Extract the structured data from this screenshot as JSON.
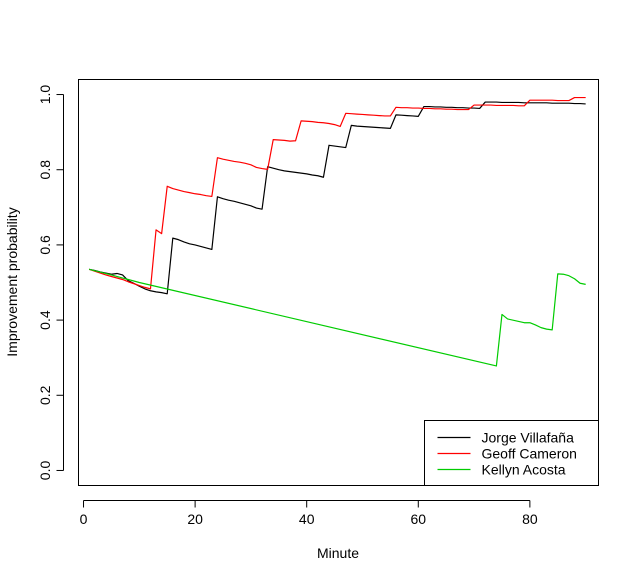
{
  "chart_data": {
    "type": "line",
    "title": "",
    "xlabel": "Minute",
    "ylabel": "Improvement probability",
    "xlim": [
      -0.9,
      92.3
    ],
    "ylim": [
      -0.04,
      1.04
    ],
    "x_ticks": [
      0,
      20,
      40,
      60,
      80
    ],
    "y_ticks": [
      0.0,
      0.2,
      0.4,
      0.6,
      0.8,
      1.0
    ],
    "x_tick_labels": [
      "0",
      "20",
      "40",
      "60",
      "80"
    ],
    "y_tick_labels": [
      "0.0",
      "0.2",
      "0.4",
      "0.6",
      "0.8",
      "1.0"
    ],
    "legend_position": "bottom-right",
    "series": [
      {
        "name": "Jorge Villafaña",
        "color": "#000000",
        "points": [
          [
            1,
            0.535
          ],
          [
            2,
            0.532
          ],
          [
            3,
            0.528
          ],
          [
            4,
            0.525
          ],
          [
            5,
            0.522
          ],
          [
            6,
            0.524
          ],
          [
            7,
            0.52
          ],
          [
            8,
            0.505
          ],
          [
            9,
            0.498
          ],
          [
            10,
            0.49
          ],
          [
            11,
            0.483
          ],
          [
            12,
            0.478
          ],
          [
            13,
            0.475
          ],
          [
            14,
            0.473
          ],
          [
            15,
            0.47
          ],
          [
            16,
            0.618
          ],
          [
            17,
            0.614
          ],
          [
            18,
            0.608
          ],
          [
            19,
            0.603
          ],
          [
            20,
            0.6
          ],
          [
            21,
            0.596
          ],
          [
            22,
            0.592
          ],
          [
            23,
            0.588
          ],
          [
            24,
            0.728
          ],
          [
            25,
            0.723
          ],
          [
            26,
            0.719
          ],
          [
            27,
            0.716
          ],
          [
            28,
            0.712
          ],
          [
            29,
            0.708
          ],
          [
            30,
            0.704
          ],
          [
            31,
            0.698
          ],
          [
            32,
            0.695
          ],
          [
            33,
            0.808
          ],
          [
            34,
            0.804
          ],
          [
            35,
            0.8
          ],
          [
            36,
            0.797
          ],
          [
            37,
            0.795
          ],
          [
            38,
            0.793
          ],
          [
            39,
            0.791
          ],
          [
            40,
            0.789
          ],
          [
            41,
            0.786
          ],
          [
            42,
            0.784
          ],
          [
            43,
            0.78
          ],
          [
            44,
            0.865
          ],
          [
            45,
            0.863
          ],
          [
            46,
            0.861
          ],
          [
            47,
            0.859
          ],
          [
            48,
            0.918
          ],
          [
            49,
            0.916
          ],
          [
            50,
            0.915
          ],
          [
            51,
            0.914
          ],
          [
            52,
            0.913
          ],
          [
            53,
            0.912
          ],
          [
            54,
            0.911
          ],
          [
            55,
            0.91
          ],
          [
            56,
            0.946
          ],
          [
            57,
            0.945
          ],
          [
            58,
            0.944
          ],
          [
            59,
            0.943
          ],
          [
            60,
            0.942
          ],
          [
            61,
            0.968
          ],
          [
            62,
            0.968
          ],
          [
            63,
            0.967
          ],
          [
            64,
            0.967
          ],
          [
            65,
            0.966
          ],
          [
            66,
            0.966
          ],
          [
            67,
            0.965
          ],
          [
            68,
            0.965
          ],
          [
            69,
            0.964
          ],
          [
            70,
            0.964
          ],
          [
            71,
            0.963
          ],
          [
            72,
            0.98
          ],
          [
            73,
            0.98
          ],
          [
            74,
            0.98
          ],
          [
            75,
            0.979
          ],
          [
            76,
            0.979
          ],
          [
            77,
            0.979
          ],
          [
            78,
            0.979
          ],
          [
            79,
            0.978
          ],
          [
            80,
            0.978
          ],
          [
            81,
            0.978
          ],
          [
            82,
            0.978
          ],
          [
            83,
            0.978
          ],
          [
            84,
            0.977
          ],
          [
            85,
            0.977
          ],
          [
            86,
            0.977
          ],
          [
            87,
            0.977
          ],
          [
            88,
            0.976
          ],
          [
            89,
            0.976
          ],
          [
            90,
            0.975
          ]
        ]
      },
      {
        "name": "Geoff Cameron",
        "color": "#ff0000",
        "points": [
          [
            1,
            0.535
          ],
          [
            2,
            0.53
          ],
          [
            3,
            0.525
          ],
          [
            4,
            0.52
          ],
          [
            5,
            0.516
          ],
          [
            6,
            0.512
          ],
          [
            7,
            0.508
          ],
          [
            8,
            0.502
          ],
          [
            9,
            0.497
          ],
          [
            10,
            0.492
          ],
          [
            11,
            0.487
          ],
          [
            12,
            0.483
          ],
          [
            13,
            0.64
          ],
          [
            14,
            0.63
          ],
          [
            15,
            0.756
          ],
          [
            16,
            0.75
          ],
          [
            17,
            0.746
          ],
          [
            18,
            0.742
          ],
          [
            19,
            0.739
          ],
          [
            20,
            0.736
          ],
          [
            21,
            0.734
          ],
          [
            22,
            0.731
          ],
          [
            23,
            0.729
          ],
          [
            24,
            0.832
          ],
          [
            25,
            0.828
          ],
          [
            26,
            0.825
          ],
          [
            27,
            0.822
          ],
          [
            28,
            0.82
          ],
          [
            29,
            0.817
          ],
          [
            30,
            0.813
          ],
          [
            31,
            0.806
          ],
          [
            32,
            0.803
          ],
          [
            33,
            0.801
          ],
          [
            34,
            0.88
          ],
          [
            35,
            0.879
          ],
          [
            36,
            0.878
          ],
          [
            37,
            0.876
          ],
          [
            38,
            0.877
          ],
          [
            39,
            0.93
          ],
          [
            40,
            0.929
          ],
          [
            41,
            0.928
          ],
          [
            42,
            0.926
          ],
          [
            43,
            0.925
          ],
          [
            44,
            0.923
          ],
          [
            45,
            0.92
          ],
          [
            46,
            0.915
          ],
          [
            47,
            0.95
          ],
          [
            48,
            0.949
          ],
          [
            49,
            0.948
          ],
          [
            50,
            0.947
          ],
          [
            51,
            0.946
          ],
          [
            52,
            0.945
          ],
          [
            53,
            0.944
          ],
          [
            54,
            0.943
          ],
          [
            55,
            0.943
          ],
          [
            56,
            0.966
          ],
          [
            57,
            0.965
          ],
          [
            58,
            0.965
          ],
          [
            59,
            0.964
          ],
          [
            60,
            0.964
          ],
          [
            61,
            0.963
          ],
          [
            62,
            0.963
          ],
          [
            63,
            0.962
          ],
          [
            64,
            0.962
          ],
          [
            65,
            0.961
          ],
          [
            66,
            0.961
          ],
          [
            67,
            0.96
          ],
          [
            68,
            0.96
          ],
          [
            69,
            0.96
          ],
          [
            70,
            0.972
          ],
          [
            71,
            0.972
          ],
          [
            72,
            0.972
          ],
          [
            73,
            0.972
          ],
          [
            74,
            0.971
          ],
          [
            75,
            0.971
          ],
          [
            76,
            0.971
          ],
          [
            77,
            0.971
          ],
          [
            78,
            0.97
          ],
          [
            79,
            0.97
          ],
          [
            80,
            0.985
          ],
          [
            81,
            0.985
          ],
          [
            82,
            0.985
          ],
          [
            83,
            0.985
          ],
          [
            84,
            0.985
          ],
          [
            85,
            0.984
          ],
          [
            86,
            0.984
          ],
          [
            87,
            0.984
          ],
          [
            88,
            0.992
          ],
          [
            89,
            0.992
          ],
          [
            90,
            0.992
          ]
        ]
      },
      {
        "name": "Kellyn Acosta",
        "color": "#00cc00",
        "points": [
          [
            1,
            0.535
          ],
          [
            5,
            0.52
          ],
          [
            10,
            0.5
          ],
          [
            74,
            0.278
          ],
          [
            75,
            0.415
          ],
          [
            76,
            0.403
          ],
          [
            79,
            0.393
          ],
          [
            80,
            0.393
          ],
          [
            81,
            0.387
          ],
          [
            82,
            0.38
          ],
          [
            83,
            0.376
          ],
          [
            84,
            0.374
          ],
          [
            85,
            0.523
          ],
          [
            86,
            0.522
          ],
          [
            87,
            0.518
          ],
          [
            88,
            0.51
          ],
          [
            89,
            0.498
          ],
          [
            90,
            0.495
          ]
        ]
      }
    ]
  }
}
